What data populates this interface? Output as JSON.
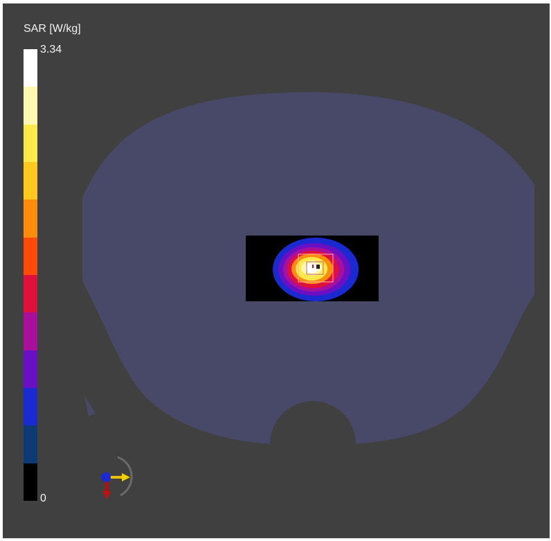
{
  "legend": {
    "title": "SAR [W/kg]",
    "max_label": "3.34",
    "min_label": "0",
    "colors": [
      "#ffffff",
      "#fff8b0",
      "#ffe84a",
      "#ffc81e",
      "#ff8c0a",
      "#ff4a0a",
      "#e0103c",
      "#a8109c",
      "#6a10c4",
      "#1a2ad0",
      "#0c3a74",
      "#000000"
    ]
  },
  "colors": {
    "background": "#404040",
    "phantom": "#484968",
    "hotspot_core": "#ffffff",
    "hotspot_box": "#000000"
  }
}
